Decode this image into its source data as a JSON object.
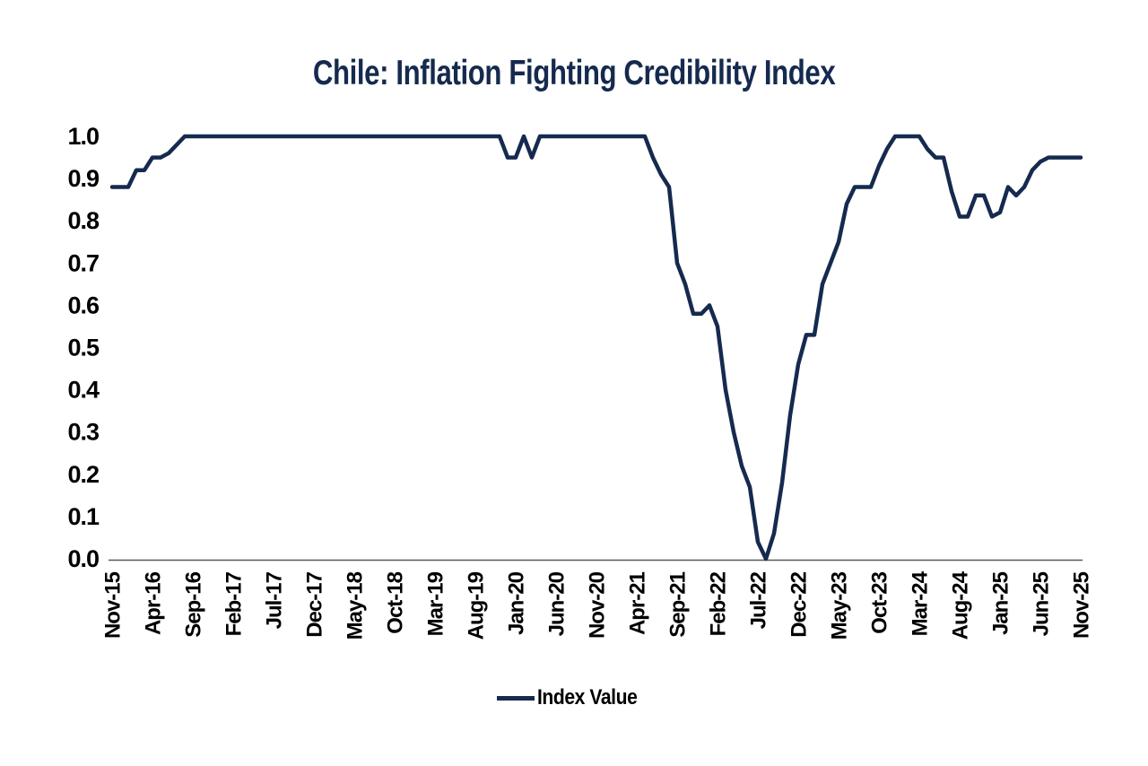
{
  "page": {
    "background": "#ffffff"
  },
  "chart": {
    "title": "Chile: Inflation Fighting Credibility Index",
    "title_color": "#152a4e",
    "legend": {
      "label": "Index Value",
      "swatch_color": "#152a4e"
    }
  },
  "chart_data": {
    "type": "line",
    "title": "Chile: Inflation Fighting Credibility Index",
    "xlabel": "",
    "ylabel": "",
    "ylim": [
      0.0,
      1.0
    ],
    "grid": false,
    "legend_position": "bottom",
    "line_color": "#152a4e",
    "axis_color": "#595959",
    "y_ticks": [
      "0.0",
      "0.1",
      "0.2",
      "0.3",
      "0.4",
      "0.5",
      "0.6",
      "0.7",
      "0.8",
      "0.9",
      "1.0"
    ],
    "x_tick_labels": [
      "Nov-15",
      "Apr-16",
      "Sep-16",
      "Feb-17",
      "Jul-17",
      "Dec-17",
      "May-18",
      "Oct-18",
      "Mar-19",
      "Aug-19",
      "Jan-20",
      "Jun-20",
      "Nov-20",
      "Apr-21",
      "Sep-21",
      "Feb-22",
      "Jul-22",
      "Dec-22",
      "May-23",
      "Oct-23",
      "Mar-24",
      "Aug-24",
      "Jan-25",
      "Jun-25",
      "Nov-25"
    ],
    "series": [
      {
        "name": "Index Value",
        "x": [
          "Nov-15",
          "Dec-15",
          "Jan-16",
          "Feb-16",
          "Mar-16",
          "Apr-16",
          "May-16",
          "Jun-16",
          "Jul-16",
          "Aug-16",
          "Sep-16",
          "Oct-16",
          "Nov-16",
          "Dec-16",
          "Jan-17",
          "Feb-17",
          "Mar-17",
          "Apr-17",
          "May-17",
          "Jun-17",
          "Jul-17",
          "Aug-17",
          "Sep-17",
          "Oct-17",
          "Nov-17",
          "Dec-17",
          "Jan-18",
          "Feb-18",
          "Mar-18",
          "Apr-18",
          "May-18",
          "Jun-18",
          "Jul-18",
          "Aug-18",
          "Sep-18",
          "Oct-18",
          "Nov-18",
          "Dec-18",
          "Jan-19",
          "Feb-19",
          "Mar-19",
          "Apr-19",
          "May-19",
          "Jun-19",
          "Jul-19",
          "Aug-19",
          "Sep-19",
          "Oct-19",
          "Nov-19",
          "Dec-19",
          "Jan-20",
          "Feb-20",
          "Mar-20",
          "Apr-20",
          "May-20",
          "Jun-20",
          "Jul-20",
          "Aug-20",
          "Sep-20",
          "Oct-20",
          "Nov-20",
          "Dec-20",
          "Jan-21",
          "Feb-21",
          "Mar-21",
          "Apr-21",
          "May-21",
          "Jun-21",
          "Jul-21",
          "Aug-21",
          "Sep-21",
          "Oct-21",
          "Nov-21",
          "Dec-21",
          "Jan-22",
          "Feb-22",
          "Mar-22",
          "Apr-22",
          "May-22",
          "Jun-22",
          "Jul-22",
          "Aug-22",
          "Sep-22",
          "Oct-22",
          "Nov-22",
          "Dec-22",
          "Jan-23",
          "Feb-23",
          "Mar-23",
          "Apr-23",
          "May-23",
          "Jun-23",
          "Jul-23",
          "Aug-23",
          "Sep-23",
          "Oct-23",
          "Nov-23",
          "Dec-23",
          "Jan-24",
          "Feb-24",
          "Mar-24",
          "Apr-24",
          "May-24",
          "Jun-24",
          "Jul-24",
          "Aug-24",
          "Sep-24",
          "Oct-24",
          "Nov-24",
          "Dec-24",
          "Jan-25",
          "Feb-25",
          "Mar-25",
          "Apr-25",
          "May-25",
          "Jun-25",
          "Jul-25",
          "Aug-25",
          "Sep-25",
          "Oct-25",
          "Nov-25"
        ],
        "values": [
          0.88,
          0.88,
          0.88,
          0.92,
          0.92,
          0.95,
          0.95,
          0.96,
          0.98,
          1.0,
          1.0,
          1.0,
          1.0,
          1.0,
          1.0,
          1.0,
          1.0,
          1.0,
          1.0,
          1.0,
          1.0,
          1.0,
          1.0,
          1.0,
          1.0,
          1.0,
          1.0,
          1.0,
          1.0,
          1.0,
          1.0,
          1.0,
          1.0,
          1.0,
          1.0,
          1.0,
          1.0,
          1.0,
          1.0,
          1.0,
          1.0,
          1.0,
          1.0,
          1.0,
          1.0,
          1.0,
          1.0,
          1.0,
          1.0,
          0.95,
          0.95,
          1.0,
          0.95,
          1.0,
          1.0,
          1.0,
          1.0,
          1.0,
          1.0,
          1.0,
          1.0,
          1.0,
          1.0,
          1.0,
          1.0,
          1.0,
          1.0,
          0.95,
          0.91,
          0.88,
          0.7,
          0.65,
          0.58,
          0.58,
          0.6,
          0.55,
          0.4,
          0.3,
          0.22,
          0.17,
          0.04,
          0.0,
          0.06,
          0.18,
          0.34,
          0.46,
          0.53,
          0.53,
          0.65,
          0.7,
          0.75,
          0.84,
          0.88,
          0.88,
          0.88,
          0.93,
          0.97,
          1.0,
          1.0,
          1.0,
          1.0,
          0.97,
          0.95,
          0.95,
          0.87,
          0.81,
          0.81,
          0.86,
          0.86,
          0.81,
          0.82,
          0.88,
          0.86,
          0.88,
          0.92,
          0.94,
          0.95,
          0.95,
          0.95,
          0.95,
          0.95
        ]
      }
    ]
  }
}
